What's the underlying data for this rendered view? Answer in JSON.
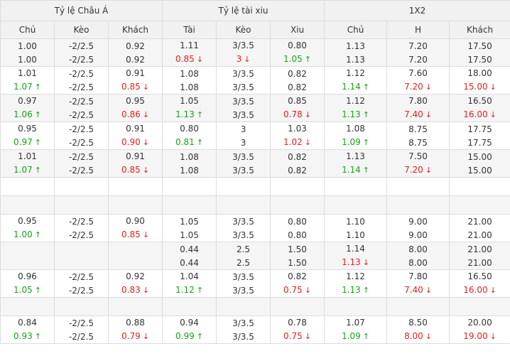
{
  "headers": {
    "groups": [
      "Tỷ lệ Châu Á",
      "Tỷ lệ tài xiu",
      "1X2"
    ],
    "columns": [
      "Chủ",
      "Kèo",
      "Khách",
      "Tài",
      "Kèo",
      "Xiu",
      "Chủ",
      "H",
      "Khách"
    ]
  },
  "rows": [
    {
      "type": "data",
      "cells": [
        [
          {
            "t": "1.00"
          },
          {
            "t": "1.00"
          }
        ],
        [
          {
            "t": "-2/2.5"
          },
          {
            "t": "-2/2.5"
          }
        ],
        [
          {
            "t": "0.92"
          },
          {
            "t": "0.92"
          }
        ],
        [
          {
            "t": "1.11"
          },
          {
            "t": "0.85",
            "d": "down"
          }
        ],
        [
          {
            "t": "3/3.5"
          },
          {
            "t": "3",
            "d": "down"
          }
        ],
        [
          {
            "t": "0.80"
          },
          {
            "t": "1.05",
            "d": "up"
          }
        ],
        [
          {
            "t": "1.13"
          },
          {
            "t": "1.13"
          }
        ],
        [
          {
            "t": "7.20"
          },
          {
            "t": "7.20"
          }
        ],
        [
          {
            "t": "17.50"
          },
          {
            "t": "17.50"
          }
        ]
      ]
    },
    {
      "type": "data",
      "cells": [
        [
          {
            "t": "1.01"
          },
          {
            "t": "1.07",
            "d": "up"
          }
        ],
        [
          {
            "t": "-2/2.5"
          },
          {
            "t": "-2/2.5"
          }
        ],
        [
          {
            "t": "0.91"
          },
          {
            "t": "0.85",
            "d": "down"
          }
        ],
        [
          {
            "t": "1.08"
          },
          {
            "t": "1.08"
          }
        ],
        [
          {
            "t": "3/3.5"
          },
          {
            "t": "3/3.5"
          }
        ],
        [
          {
            "t": "0.82"
          },
          {
            "t": "0.82"
          }
        ],
        [
          {
            "t": "1.12"
          },
          {
            "t": "1.14",
            "d": "up"
          }
        ],
        [
          {
            "t": "7.60"
          },
          {
            "t": "7.20",
            "d": "down"
          }
        ],
        [
          {
            "t": "18.00"
          },
          {
            "t": "15.00",
            "d": "down"
          }
        ]
      ]
    },
    {
      "type": "data",
      "cells": [
        [
          {
            "t": "0.97"
          },
          {
            "t": "1.06",
            "d": "up"
          }
        ],
        [
          {
            "t": "-2/2.5"
          },
          {
            "t": "-2/2.5"
          }
        ],
        [
          {
            "t": "0.95"
          },
          {
            "t": "0.86",
            "d": "down"
          }
        ],
        [
          {
            "t": "1.05"
          },
          {
            "t": "1.13",
            "d": "up"
          }
        ],
        [
          {
            "t": "3/3.5"
          },
          {
            "t": "3/3.5"
          }
        ],
        [
          {
            "t": "0.85"
          },
          {
            "t": "0.78",
            "d": "down"
          }
        ],
        [
          {
            "t": "1.12"
          },
          {
            "t": "1.13",
            "d": "up"
          }
        ],
        [
          {
            "t": "7.80"
          },
          {
            "t": "7.40",
            "d": "down"
          }
        ],
        [
          {
            "t": "16.50"
          },
          {
            "t": "16.00",
            "d": "down"
          }
        ]
      ]
    },
    {
      "type": "data",
      "cells": [
        [
          {
            "t": "0.95"
          },
          {
            "t": "0.97",
            "d": "up"
          }
        ],
        [
          {
            "t": "-2/2.5"
          },
          {
            "t": "-2/2.5"
          }
        ],
        [
          {
            "t": "0.91"
          },
          {
            "t": "0.90",
            "d": "down"
          }
        ],
        [
          {
            "t": "0.80"
          },
          {
            "t": "0.81",
            "d": "up"
          }
        ],
        [
          {
            "t": "3"
          },
          {
            "t": "3"
          }
        ],
        [
          {
            "t": "1.03"
          },
          {
            "t": "1.02",
            "d": "down"
          }
        ],
        [
          {
            "t": "1.08"
          },
          {
            "t": "1.09",
            "d": "up"
          }
        ],
        [
          {
            "t": "8.75"
          },
          {
            "t": "8.75"
          }
        ],
        [
          {
            "t": "17.75"
          },
          {
            "t": "17.75"
          }
        ]
      ]
    },
    {
      "type": "data",
      "cells": [
        [
          {
            "t": "1.01"
          },
          {
            "t": "1.07",
            "d": "up"
          }
        ],
        [
          {
            "t": "-2/2.5"
          },
          {
            "t": "-2/2.5"
          }
        ],
        [
          {
            "t": "0.91"
          },
          {
            "t": "0.85",
            "d": "down"
          }
        ],
        [
          {
            "t": "1.08"
          },
          {
            "t": "1.08"
          }
        ],
        [
          {
            "t": "3/3.5"
          },
          {
            "t": "3/3.5"
          }
        ],
        [
          {
            "t": "0.82"
          },
          {
            "t": "0.82"
          }
        ],
        [
          {
            "t": "1.13"
          },
          {
            "t": "1.14",
            "d": "up"
          }
        ],
        [
          {
            "t": "7.50"
          },
          {
            "t": "7.20",
            "d": "down"
          }
        ],
        [
          {
            "t": "15.00"
          },
          {
            "t": "15.00"
          }
        ]
      ]
    },
    {
      "type": "empty"
    },
    {
      "type": "empty"
    },
    {
      "type": "data",
      "cells": [
        [
          {
            "t": "0.95"
          },
          {
            "t": "1.00",
            "d": "up"
          }
        ],
        [
          {
            "t": "-2/2.5"
          },
          {
            "t": "-2/2.5"
          }
        ],
        [
          {
            "t": "0.90"
          },
          {
            "t": "0.85",
            "d": "down"
          }
        ],
        [
          {
            "t": "1.05"
          },
          {
            "t": "1.05"
          }
        ],
        [
          {
            "t": "3/3.5"
          },
          {
            "t": "3/3.5"
          }
        ],
        [
          {
            "t": "0.80"
          },
          {
            "t": "0.80"
          }
        ],
        [
          {
            "t": "1.10"
          },
          {
            "t": "1.10"
          }
        ],
        [
          {
            "t": "9.00"
          },
          {
            "t": "9.00"
          }
        ],
        [
          {
            "t": "21.00"
          },
          {
            "t": "21.00"
          }
        ]
      ]
    },
    {
      "type": "data",
      "cells": [
        [],
        [],
        [],
        [
          {
            "t": "0.44"
          },
          {
            "t": "0.44"
          }
        ],
        [
          {
            "t": "2.5"
          },
          {
            "t": "2.5"
          }
        ],
        [
          {
            "t": "1.50"
          },
          {
            "t": "1.50"
          }
        ],
        [
          {
            "t": "1.14"
          },
          {
            "t": "1.13",
            "d": "down"
          }
        ],
        [
          {
            "t": "8.00"
          },
          {
            "t": "8.00"
          }
        ],
        [
          {
            "t": "21.00"
          },
          {
            "t": "21.00"
          }
        ]
      ]
    },
    {
      "type": "data",
      "cells": [
        [
          {
            "t": "0.96"
          },
          {
            "t": "1.05",
            "d": "up"
          }
        ],
        [
          {
            "t": "-2/2.5"
          },
          {
            "t": "-2/2.5"
          }
        ],
        [
          {
            "t": "0.92"
          },
          {
            "t": "0.83",
            "d": "down"
          }
        ],
        [
          {
            "t": "1.04"
          },
          {
            "t": "1.12",
            "d": "up"
          }
        ],
        [
          {
            "t": "3/3.5"
          },
          {
            "t": "3/3.5"
          }
        ],
        [
          {
            "t": "0.82"
          },
          {
            "t": "0.75",
            "d": "down"
          }
        ],
        [
          {
            "t": "1.12"
          },
          {
            "t": "1.13",
            "d": "up"
          }
        ],
        [
          {
            "t": "7.80"
          },
          {
            "t": "7.40",
            "d": "down"
          }
        ],
        [
          {
            "t": "16.50"
          },
          {
            "t": "16.00",
            "d": "down"
          }
        ]
      ]
    },
    {
      "type": "empty"
    },
    {
      "type": "data",
      "cells": [
        [
          {
            "t": "0.84"
          },
          {
            "t": "0.93",
            "d": "up"
          }
        ],
        [
          {
            "t": "-2/2.5"
          },
          {
            "t": "-2/2.5"
          }
        ],
        [
          {
            "t": "0.88"
          },
          {
            "t": "0.79",
            "d": "down"
          }
        ],
        [
          {
            "t": "0.94"
          },
          {
            "t": "0.99",
            "d": "up"
          }
        ],
        [
          {
            "t": "3/3.5"
          },
          {
            "t": "3/3.5"
          }
        ],
        [
          {
            "t": "0.78"
          },
          {
            "t": "0.75",
            "d": "down"
          }
        ],
        [
          {
            "t": "1.07"
          },
          {
            "t": "1.09",
            "d": "up"
          }
        ],
        [
          {
            "t": "8.50"
          },
          {
            "t": "8.00",
            "d": "down"
          }
        ],
        [
          {
            "t": "20.00"
          },
          {
            "t": "19.00",
            "d": "down"
          }
        ]
      ]
    }
  ],
  "icons": {
    "up": "arrow-up-icon",
    "down": "arrow-down-icon"
  },
  "colors": {
    "up": "#1aa11a",
    "down": "#e12020",
    "header_bg": "#f1f1f1",
    "alt_row_bg": "#f5f5f5",
    "border": "#dcdcdc"
  }
}
